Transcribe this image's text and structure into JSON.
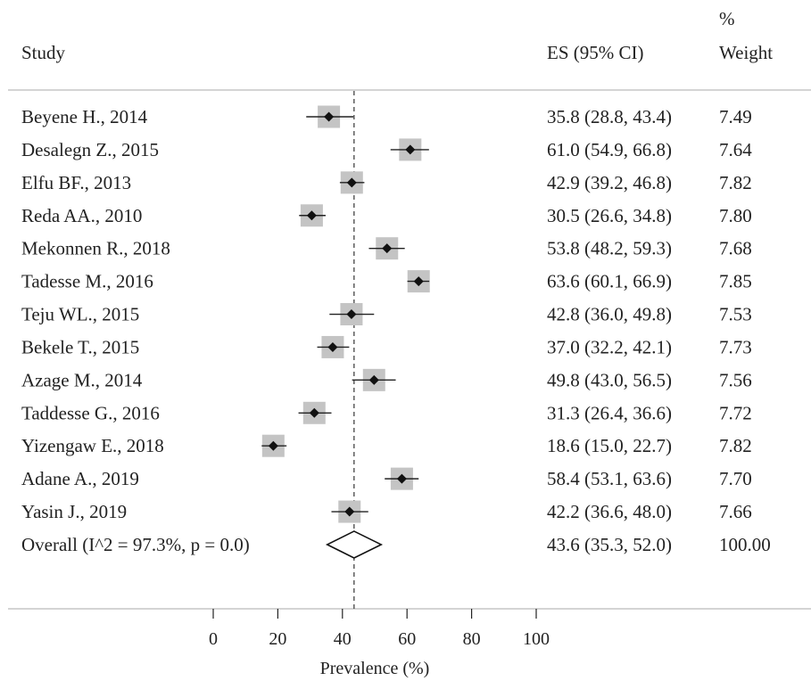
{
  "headers": {
    "study": "Study",
    "es": "ES (95% CI)",
    "weight_top": "%",
    "weight_bottom": "Weight"
  },
  "colors": {
    "box": "#c4c4c4",
    "marker": "#111111",
    "line": "#222222",
    "rule": "#bbbbbb"
  },
  "chart_data": {
    "type": "forest",
    "xlabel": "Prevalence (%)",
    "xlim": [
      0,
      100
    ],
    "xticks": [
      "0",
      "20",
      "40",
      "60",
      "80",
      "100"
    ],
    "reference_line": 43.6,
    "studies": [
      {
        "label": "Beyene H., 2014",
        "es": 35.8,
        "lo": 28.8,
        "hi": 43.4,
        "es_text": "35.8 (28.8, 43.4)",
        "weight": "7.49"
      },
      {
        "label": "Desalegn Z., 2015",
        "es": 61.0,
        "lo": 54.9,
        "hi": 66.8,
        "es_text": "61.0 (54.9, 66.8)",
        "weight": "7.64"
      },
      {
        "label": "Elfu BF., 2013",
        "es": 42.9,
        "lo": 39.2,
        "hi": 46.8,
        "es_text": "42.9 (39.2, 46.8)",
        "weight": "7.82"
      },
      {
        "label": "Reda AA., 2010",
        "es": 30.5,
        "lo": 26.6,
        "hi": 34.8,
        "es_text": "30.5 (26.6, 34.8)",
        "weight": "7.80"
      },
      {
        "label": "Mekonnen R., 2018",
        "es": 53.8,
        "lo": 48.2,
        "hi": 59.3,
        "es_text": "53.8 (48.2, 59.3)",
        "weight": "7.68"
      },
      {
        "label": "Tadesse M., 2016",
        "es": 63.6,
        "lo": 60.1,
        "hi": 66.9,
        "es_text": "63.6 (60.1, 66.9)",
        "weight": "7.85"
      },
      {
        "label": "Teju WL., 2015",
        "es": 42.8,
        "lo": 36.0,
        "hi": 49.8,
        "es_text": "42.8 (36.0, 49.8)",
        "weight": "7.53"
      },
      {
        "label": "Bekele T., 2015",
        "es": 37.0,
        "lo": 32.2,
        "hi": 42.1,
        "es_text": "37.0 (32.2, 42.1)",
        "weight": "7.73"
      },
      {
        "label": "Azage M., 2014",
        "es": 49.8,
        "lo": 43.0,
        "hi": 56.5,
        "es_text": "49.8 (43.0, 56.5)",
        "weight": "7.56"
      },
      {
        "label": "Taddesse G., 2016",
        "es": 31.3,
        "lo": 26.4,
        "hi": 36.6,
        "es_text": "31.3 (26.4, 36.6)",
        "weight": "7.72"
      },
      {
        "label": "Yizengaw E., 2018",
        "es": 18.6,
        "lo": 15.0,
        "hi": 22.7,
        "es_text": "18.6 (15.0, 22.7)",
        "weight": "7.82"
      },
      {
        "label": "Adane A., 2019",
        "es": 58.4,
        "lo": 53.1,
        "hi": 63.6,
        "es_text": "58.4 (53.1, 63.6)",
        "weight": "7.70"
      },
      {
        "label": "Yasin J., 2019",
        "es": 42.2,
        "lo": 36.6,
        "hi": 48.0,
        "es_text": "42.2 (36.6, 48.0)",
        "weight": "7.66"
      }
    ],
    "overall": {
      "label": "Overall  (I^2 = 97.3%, p = 0.0)",
      "es": 43.6,
      "lo": 35.3,
      "hi": 52.0,
      "es_text": "43.6 (35.3, 52.0)",
      "weight": "100.00"
    }
  }
}
